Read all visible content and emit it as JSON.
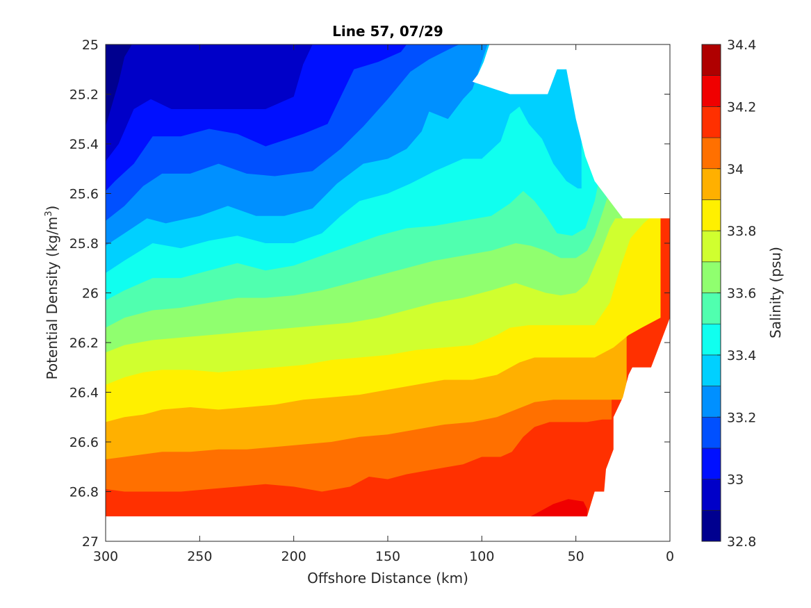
{
  "chart_data": {
    "type": "contourf",
    "title": "Line 57, 07/29",
    "xlabel": "Offshore Distance (km)",
    "ylabel": "Potential Density (kg/m",
    "ylabel_sup": "3",
    "ylabel_close": ")",
    "colorbar_label": "Salinity (psu)",
    "xlim": [
      300,
      0
    ],
    "ylim": [
      25,
      27
    ],
    "y_reversed": true,
    "xticks": [
      300,
      250,
      200,
      150,
      100,
      50,
      0
    ],
    "yticks": [
      25,
      25.2,
      25.4,
      25.6,
      25.8,
      26,
      26.2,
      26.4,
      26.6,
      26.8,
      27
    ],
    "xtick_labels": [
      "300",
      "250",
      "200",
      "150",
      "100",
      "50",
      "0"
    ],
    "ytick_labels": [
      "25",
      "25.2",
      "25.4",
      "25.6",
      "25.8",
      "26",
      "26.2",
      "26.4",
      "26.6",
      "26.8",
      "27"
    ],
    "colorbar_ticks": [
      32.8,
      33,
      33.2,
      33.4,
      33.6,
      33.8,
      34,
      34.2,
      34.4
    ],
    "colorbar_tick_labels": [
      "32.8",
      "33",
      "33.2",
      "33.4",
      "33.6",
      "33.8",
      "34",
      "34.2",
      "34.4"
    ],
    "colorbar_range": [
      32.8,
      34.4
    ],
    "levels": [
      32.8,
      32.9,
      33.0,
      33.1,
      33.2,
      33.3,
      33.4,
      33.5,
      33.6,
      33.7,
      33.8,
      33.9,
      34.0,
      34.1,
      34.2,
      34.3,
      34.4
    ],
    "colormap": [
      "#00008f",
      "#0000bf",
      "#0000ef",
      "#0030ff",
      "#0060ff",
      "#008fff",
      "#00bfff",
      "#00efff",
      "#30ffcf",
      "#60ff9f",
      "#8fff70",
      "#bfff40",
      "#efff10",
      "#ffd000",
      "#ffaf00",
      "#ff6f00",
      "#ff3f00",
      "#ef0000",
      "#af0000"
    ],
    "band_colors": [
      "#00008f",
      "#0000c8",
      "#0010ff",
      "#0050ff",
      "#0090ff",
      "#00d0ff",
      "#10ffef",
      "#50ffaf",
      "#90ff6f",
      "#d0ff2f",
      "#fff000",
      "#ffb000",
      "#ff7000",
      "#ff3000",
      "#f00000",
      "#af0000"
    ],
    "contour_lines": [
      {
        "level": 32.9,
        "points": [
          [
            300,
            25.33
          ],
          [
            293,
            25.15
          ],
          [
            290,
            25.05
          ],
          [
            286,
            25.0
          ]
        ]
      },
      {
        "level": 33.0,
        "points": [
          [
            300,
            25.47
          ],
          [
            293,
            25.4
          ],
          [
            285,
            25.26
          ],
          [
            276,
            25.22
          ],
          [
            265,
            25.26
          ],
          [
            250,
            25.26
          ],
          [
            235,
            25.26
          ],
          [
            215,
            25.26
          ],
          [
            200,
            25.21
          ],
          [
            195,
            25.08
          ],
          [
            190,
            25.0
          ]
        ]
      },
      {
        "level": 33.1,
        "points": [
          [
            300,
            25.59
          ],
          [
            295,
            25.55
          ],
          [
            285,
            25.48
          ],
          [
            275,
            25.37
          ],
          [
            260,
            25.37
          ],
          [
            245,
            25.34
          ],
          [
            230,
            25.36
          ],
          [
            215,
            25.41
          ],
          [
            195,
            25.36
          ],
          [
            182,
            25.32
          ],
          [
            175,
            25.21
          ],
          [
            168,
            25.1
          ],
          [
            155,
            25.07
          ],
          [
            143,
            25.03
          ],
          [
            140,
            25.0
          ]
        ]
      },
      {
        "level": 33.2,
        "points": [
          [
            300,
            25.71
          ],
          [
            290,
            25.65
          ],
          [
            280,
            25.57
          ],
          [
            270,
            25.52
          ],
          [
            255,
            25.52
          ],
          [
            240,
            25.48
          ],
          [
            225,
            25.52
          ],
          [
            210,
            25.53
          ],
          [
            190,
            25.51
          ],
          [
            175,
            25.42
          ],
          [
            163,
            25.33
          ],
          [
            150,
            25.22
          ],
          [
            138,
            25.11
          ],
          [
            128,
            25.06
          ],
          [
            115,
            25.01
          ],
          [
            112,
            25.0
          ]
        ]
      },
      {
        "level": 33.3,
        "points": [
          [
            300,
            25.81
          ],
          [
            290,
            25.76
          ],
          [
            278,
            25.7
          ],
          [
            268,
            25.72
          ],
          [
            250,
            25.69
          ],
          [
            235,
            25.65
          ],
          [
            220,
            25.69
          ],
          [
            205,
            25.69
          ],
          [
            190,
            25.66
          ],
          [
            177,
            25.56
          ],
          [
            163,
            25.48
          ],
          [
            150,
            25.46
          ],
          [
            140,
            25.42
          ],
          [
            132,
            25.35
          ],
          [
            128,
            25.27
          ],
          [
            118,
            25.3
          ],
          [
            110,
            25.22
          ],
          [
            105,
            25.18
          ],
          [
            100,
            25.07
          ],
          [
            97,
            25.0
          ]
        ]
      },
      {
        "level": 33.4,
        "points": [
          [
            300,
            25.92
          ],
          [
            290,
            25.87
          ],
          [
            275,
            25.8
          ],
          [
            260,
            25.82
          ],
          [
            245,
            25.79
          ],
          [
            230,
            25.77
          ],
          [
            215,
            25.8
          ],
          [
            200,
            25.8
          ],
          [
            185,
            25.76
          ],
          [
            175,
            25.69
          ],
          [
            165,
            25.63
          ],
          [
            150,
            25.6
          ],
          [
            138,
            25.56
          ],
          [
            125,
            25.51
          ],
          [
            110,
            25.46
          ],
          [
            100,
            25.46
          ],
          [
            90,
            25.39
          ],
          [
            85,
            25.28
          ],
          [
            80,
            25.25
          ],
          [
            75,
            25.32
          ],
          [
            68,
            25.38
          ],
          [
            62,
            25.48
          ],
          [
            55,
            25.55
          ],
          [
            49,
            25.58
          ],
          [
            47,
            25.58
          ]
        ]
      },
      {
        "level": 33.5,
        "points": [
          [
            300,
            26.03
          ],
          [
            290,
            25.99
          ],
          [
            275,
            25.94
          ],
          [
            260,
            25.94
          ],
          [
            245,
            25.91
          ],
          [
            230,
            25.88
          ],
          [
            215,
            25.91
          ],
          [
            200,
            25.89
          ],
          [
            185,
            25.85
          ],
          [
            170,
            25.81
          ],
          [
            155,
            25.77
          ],
          [
            140,
            25.74
          ],
          [
            125,
            25.73
          ],
          [
            110,
            25.71
          ],
          [
            95,
            25.69
          ],
          [
            85,
            25.64
          ],
          [
            78,
            25.59
          ],
          [
            72,
            25.63
          ],
          [
            66,
            25.69
          ],
          [
            60,
            25.76
          ],
          [
            52,
            25.77
          ],
          [
            45,
            25.74
          ],
          [
            40,
            25.63
          ],
          [
            37,
            25.52
          ],
          [
            36,
            25.46
          ]
        ]
      },
      {
        "level": 33.6,
        "points": [
          [
            300,
            26.14
          ],
          [
            290,
            26.1
          ],
          [
            275,
            26.07
          ],
          [
            260,
            26.06
          ],
          [
            245,
            26.04
          ],
          [
            230,
            26.02
          ],
          [
            215,
            26.02
          ],
          [
            200,
            26.01
          ],
          [
            185,
            25.99
          ],
          [
            170,
            25.96
          ],
          [
            155,
            25.93
          ],
          [
            140,
            25.9
          ],
          [
            125,
            25.87
          ],
          [
            110,
            25.85
          ],
          [
            95,
            25.83
          ],
          [
            82,
            25.8
          ],
          [
            74,
            25.81
          ],
          [
            66,
            25.83
          ],
          [
            58,
            25.86
          ],
          [
            50,
            25.86
          ],
          [
            44,
            25.83
          ],
          [
            40,
            25.77
          ],
          [
            36,
            25.68
          ],
          [
            33,
            25.61
          ],
          [
            31,
            25.56
          ]
        ]
      },
      {
        "level": 33.7,
        "points": [
          [
            300,
            26.24
          ],
          [
            290,
            26.21
          ],
          [
            275,
            26.19
          ],
          [
            260,
            26.18
          ],
          [
            245,
            26.17
          ],
          [
            230,
            26.16
          ],
          [
            215,
            26.15
          ],
          [
            200,
            26.14
          ],
          [
            185,
            26.13
          ],
          [
            170,
            26.12
          ],
          [
            155,
            26.1
          ],
          [
            140,
            26.07
          ],
          [
            125,
            26.04
          ],
          [
            110,
            26.02
          ],
          [
            95,
            25.99
          ],
          [
            82,
            25.96
          ],
          [
            74,
            25.98
          ],
          [
            66,
            26.0
          ],
          [
            58,
            26.01
          ],
          [
            50,
            26.0
          ],
          [
            44,
            25.96
          ],
          [
            40,
            25.89
          ],
          [
            36,
            25.82
          ],
          [
            32,
            25.74
          ],
          [
            29,
            25.7
          ],
          [
            25,
            25.7
          ]
        ]
      },
      {
        "level": 33.8,
        "points": [
          [
            300,
            26.37
          ],
          [
            290,
            26.34
          ],
          [
            280,
            26.32
          ],
          [
            270,
            26.31
          ],
          [
            255,
            26.31
          ],
          [
            240,
            26.32
          ],
          [
            225,
            26.31
          ],
          [
            210,
            26.3
          ],
          [
            195,
            26.29
          ],
          [
            180,
            26.27
          ],
          [
            165,
            26.26
          ],
          [
            150,
            26.25
          ],
          [
            135,
            26.23
          ],
          [
            120,
            26.22
          ],
          [
            105,
            26.21
          ],
          [
            92,
            26.17
          ],
          [
            85,
            26.14
          ],
          [
            75,
            26.13
          ],
          [
            62,
            26.13
          ],
          [
            50,
            26.13
          ],
          [
            40,
            26.13
          ],
          [
            32,
            26.04
          ],
          [
            26,
            25.89
          ],
          [
            21,
            25.78
          ],
          [
            14,
            25.72
          ],
          [
            11,
            25.7
          ]
        ]
      },
      {
        "level": 33.9,
        "points": [
          [
            300,
            26.52
          ],
          [
            290,
            26.5
          ],
          [
            280,
            26.49
          ],
          [
            270,
            26.47
          ],
          [
            255,
            26.46
          ],
          [
            240,
            26.47
          ],
          [
            225,
            26.46
          ],
          [
            210,
            26.45
          ],
          [
            195,
            26.43
          ],
          [
            180,
            26.42
          ],
          [
            165,
            26.41
          ],
          [
            150,
            26.39
          ],
          [
            135,
            26.37
          ],
          [
            120,
            26.35
          ],
          [
            105,
            26.35
          ],
          [
            92,
            26.33
          ],
          [
            80,
            26.28
          ],
          [
            72,
            26.26
          ],
          [
            62,
            26.26
          ],
          [
            50,
            26.26
          ],
          [
            40,
            26.26
          ],
          [
            30,
            26.22
          ],
          [
            22,
            26.17
          ],
          [
            15,
            26.14
          ],
          [
            5,
            26.1
          ]
        ]
      },
      {
        "level": 34.0,
        "points": [
          [
            300,
            26.67
          ],
          [
            290,
            26.66
          ],
          [
            280,
            26.65
          ],
          [
            270,
            26.64
          ],
          [
            255,
            26.64
          ],
          [
            240,
            26.63
          ],
          [
            225,
            26.63
          ],
          [
            210,
            26.62
          ],
          [
            195,
            26.61
          ],
          [
            180,
            26.6
          ],
          [
            165,
            26.58
          ],
          [
            150,
            26.57
          ],
          [
            135,
            26.55
          ],
          [
            120,
            26.53
          ],
          [
            105,
            26.52
          ],
          [
            92,
            26.5
          ],
          [
            82,
            26.47
          ],
          [
            72,
            26.44
          ],
          [
            62,
            26.43
          ],
          [
            50,
            26.43
          ],
          [
            40,
            26.43
          ],
          [
            30,
            26.43
          ],
          [
            24,
            26.43
          ],
          [
            23,
            26.43
          ]
        ]
      },
      {
        "level": 34.1,
        "points": [
          [
            300,
            26.79
          ],
          [
            290,
            26.8
          ],
          [
            275,
            26.8
          ],
          [
            260,
            26.8
          ],
          [
            245,
            26.79
          ],
          [
            230,
            26.78
          ],
          [
            215,
            26.77
          ],
          [
            200,
            26.78
          ],
          [
            185,
            26.8
          ],
          [
            170,
            26.78
          ],
          [
            160,
            26.74
          ],
          [
            150,
            26.75
          ],
          [
            140,
            26.73
          ],
          [
            125,
            26.71
          ],
          [
            110,
            26.69
          ],
          [
            100,
            26.66
          ],
          [
            90,
            26.66
          ],
          [
            84,
            26.64
          ],
          [
            78,
            26.58
          ],
          [
            72,
            26.54
          ],
          [
            64,
            26.52
          ],
          [
            54,
            26.52
          ],
          [
            44,
            26.52
          ],
          [
            36,
            26.51
          ],
          [
            31,
            26.51
          ]
        ]
      },
      {
        "level": 34.2,
        "points": [
          [
            74,
            26.9
          ],
          [
            62,
            26.85
          ],
          [
            54,
            26.83
          ],
          [
            46,
            26.84
          ],
          [
            44,
            26.87
          ],
          [
            44,
            26.9
          ]
        ]
      }
    ]
  }
}
